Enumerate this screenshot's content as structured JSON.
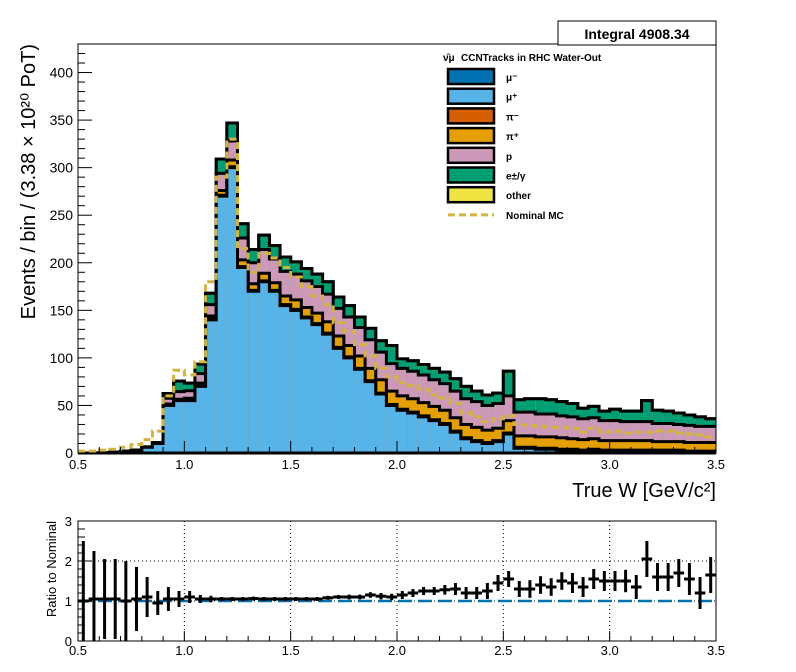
{
  "integral_box": {
    "label": "Integral 4908.34"
  },
  "chart_data": [
    {
      "type": "area",
      "title": "CCNTracks in RHC Water-Out",
      "title_prefix": "ν̄μ",
      "xlabel": "True W [GeV/c²]",
      "ylabel": "Events / bin / (3.38 × 10²⁰ PoT)",
      "xlim": [
        0.5,
        3.5
      ],
      "ylim": [
        0,
        430
      ],
      "x_ticks": [
        0.5,
        1.0,
        1.5,
        2.0,
        2.5,
        3.0,
        3.5
      ],
      "x_tick_labels": [
        "0.5",
        "1.0",
        "1.5",
        "2.0",
        "2.5",
        "3.0",
        "3.5"
      ],
      "y_ticks": [
        0,
        50,
        100,
        150,
        200,
        250,
        300,
        350,
        400
      ],
      "y_tick_labels": [
        "0",
        "50",
        "100",
        "150",
        "200",
        "250",
        "300",
        "350",
        "400"
      ],
      "grid": false,
      "legend_position": "top-right",
      "bin_edges": [
        0.5,
        0.55,
        0.6,
        0.65,
        0.7,
        0.75,
        0.8,
        0.85,
        0.9,
        0.95,
        1.0,
        1.05,
        1.1,
        1.15,
        1.2,
        1.25,
        1.3,
        1.35,
        1.4,
        1.45,
        1.5,
        1.55,
        1.6,
        1.65,
        1.7,
        1.75,
        1.8,
        1.85,
        1.9,
        1.95,
        2.0,
        2.05,
        2.1,
        2.15,
        2.2,
        2.25,
        2.3,
        2.35,
        2.4,
        2.45,
        2.5,
        2.55,
        2.6,
        2.65,
        2.7,
        2.75,
        2.8,
        2.85,
        2.9,
        2.95,
        3.0,
        3.05,
        3.1,
        3.15,
        3.2,
        3.25,
        3.3,
        3.35,
        3.4,
        3.45,
        3.5
      ],
      "series": [
        {
          "name": "μ⁻",
          "color": "#0072b2",
          "values": [
            0,
            0,
            0,
            0,
            0,
            0,
            0,
            0,
            0,
            0,
            0,
            0,
            0,
            0,
            0,
            0,
            0,
            0,
            0,
            0,
            0,
            0,
            0,
            0,
            0,
            0,
            0,
            0,
            0,
            0,
            0,
            0,
            0,
            0,
            0,
            0,
            0,
            0,
            0,
            0,
            0,
            0,
            0,
            0,
            0,
            0,
            0,
            0,
            0,
            0,
            0,
            0,
            0,
            0,
            0,
            0,
            0,
            0,
            0,
            0
          ]
        },
        {
          "name": "μ⁺",
          "color": "#56b4e9",
          "values": [
            0,
            0,
            0.5,
            1,
            2,
            3,
            6,
            10,
            50,
            55,
            55,
            70,
            140,
            270,
            300,
            195,
            170,
            180,
            170,
            155,
            150,
            142,
            135,
            125,
            110,
            100,
            88,
            75,
            62,
            50,
            45,
            42,
            38,
            34,
            30,
            22,
            15,
            12,
            10,
            12,
            20,
            5,
            5,
            4,
            4,
            3,
            3,
            2,
            3,
            2,
            2,
            2,
            2,
            2,
            2,
            2,
            2,
            1,
            1,
            1
          ]
        },
        {
          "name": "π⁻",
          "color": "#d55e00",
          "values": [
            0,
            0,
            0,
            0,
            0,
            0,
            0,
            0,
            0.5,
            0.5,
            0.5,
            0.5,
            1,
            1,
            1,
            1,
            1,
            1,
            1,
            1,
            1,
            1,
            1,
            1,
            1,
            1,
            1,
            1,
            1,
            1,
            1,
            1,
            1,
            1,
            1,
            1,
            1,
            1,
            1,
            1,
            1,
            1,
            1,
            1,
            1,
            1,
            1,
            1,
            1,
            1,
            1,
            1,
            1,
            1,
            1,
            1,
            1,
            1,
            1,
            1
          ]
        },
        {
          "name": "π⁺",
          "color": "#e69f00",
          "values": [
            0,
            0,
            0,
            0,
            0,
            0,
            0,
            0,
            1,
            1,
            2,
            3,
            3,
            5,
            7,
            7,
            7,
            8,
            8,
            9,
            10,
            10,
            11,
            12,
            12,
            12,
            13,
            13,
            14,
            14,
            14,
            14,
            14,
            14,
            14,
            14,
            14,
            14,
            13,
            13,
            13,
            12,
            12,
            12,
            12,
            12,
            11,
            11,
            11,
            10,
            10,
            10,
            10,
            10,
            9,
            9,
            9,
            9,
            9,
            9
          ]
        },
        {
          "name": "p",
          "color": "#cc99b8",
          "values": [
            0,
            0,
            0,
            0,
            0,
            0,
            0,
            0,
            6,
            8,
            8,
            10,
            12,
            18,
            20,
            23,
            22,
            25,
            25,
            26,
            27,
            28,
            28,
            29,
            29,
            30,
            30,
            30,
            29,
            29,
            29,
            29,
            29,
            28,
            28,
            28,
            27,
            27,
            26,
            26,
            26,
            25,
            25,
            24,
            24,
            23,
            23,
            22,
            22,
            21,
            21,
            20,
            20,
            20,
            19,
            19,
            18,
            18,
            17,
            17
          ]
        },
        {
          "name": "e±/γ",
          "color": "#009e73",
          "values": [
            0,
            0,
            0,
            0,
            0,
            0,
            0.5,
            1,
            5,
            11,
            8,
            10,
            12,
            15,
            19,
            15,
            14,
            15,
            14,
            15,
            13,
            13,
            13,
            13,
            12,
            12,
            11,
            12,
            12,
            19,
            10,
            11,
            11,
            12,
            12,
            13,
            13,
            11,
            11,
            11,
            26,
            13,
            14,
            16,
            15,
            15,
            14,
            11,
            12,
            10,
            12,
            11,
            11,
            22,
            14,
            13,
            12,
            11,
            10,
            8
          ]
        },
        {
          "name": "other",
          "color": "#f0e442",
          "values": [
            0,
            0,
            0,
            0,
            0,
            0,
            0,
            0,
            0,
            0,
            0,
            0,
            0,
            0,
            0,
            0,
            0,
            0,
            0,
            0,
            0,
            0,
            0,
            0,
            0,
            0,
            0,
            0,
            0,
            0,
            0,
            0,
            0,
            0,
            0,
            0,
            0,
            0,
            0,
            0,
            0,
            0,
            0,
            0,
            0,
            0,
            0,
            0,
            0,
            0,
            0,
            0,
            0,
            0,
            0,
            0,
            0,
            0,
            0,
            0
          ]
        },
        {
          "name": "Nominal MC",
          "color": "#d4b43c",
          "style": "dashed",
          "values": [
            2,
            2,
            3,
            4,
            6,
            9,
            14,
            23,
            60,
            87,
            82,
            96,
            180,
            290,
            330,
            215,
            190,
            210,
            205,
            195,
            185,
            175,
            165,
            156,
            137,
            128,
            114,
            102,
            89,
            80,
            74,
            71,
            67,
            61,
            58,
            52,
            42,
            38,
            33,
            36,
            39,
            30,
            29,
            28,
            27,
            27,
            26,
            22,
            26,
            22,
            23,
            21,
            22,
            22,
            23,
            23,
            21,
            20,
            19,
            17
          ]
        }
      ]
    },
    {
      "type": "scatter",
      "title": "",
      "xlabel": "",
      "ylabel": "Ratio to Nominal",
      "xlim": [
        0.5,
        3.5
      ],
      "ylim": [
        0,
        3
      ],
      "x_ticks": [
        0.5,
        1.0,
        1.5,
        2.0,
        2.5,
        3.0,
        3.5
      ],
      "x_tick_labels": [
        "0.5",
        "1.0",
        "1.5",
        "2.0",
        "2.5",
        "3.0",
        "3.5"
      ],
      "y_ticks": [
        0,
        1,
        2,
        3
      ],
      "y_tick_labels": [
        "0",
        "1",
        "2",
        "3"
      ],
      "grid": true,
      "reference_line": 1.0,
      "reference_color": "#0072b2",
      "x": [
        0.525,
        0.575,
        0.625,
        0.675,
        0.725,
        0.775,
        0.825,
        0.875,
        0.925,
        0.975,
        1.025,
        1.075,
        1.125,
        1.175,
        1.225,
        1.275,
        1.325,
        1.375,
        1.425,
        1.475,
        1.525,
        1.575,
        1.625,
        1.675,
        1.725,
        1.775,
        1.825,
        1.875,
        1.925,
        1.975,
        2.025,
        2.075,
        2.125,
        2.175,
        2.225,
        2.275,
        2.325,
        2.375,
        2.425,
        2.475,
        2.525,
        2.575,
        2.625,
        2.675,
        2.725,
        2.775,
        2.825,
        2.875,
        2.925,
        2.975,
        3.025,
        3.075,
        3.125,
        3.175,
        3.225,
        3.275,
        3.325,
        3.375,
        3.425,
        3.475
      ],
      "y": [
        1.0,
        1.05,
        1.05,
        1.05,
        1.0,
        1.05,
        1.1,
        0.95,
        1.05,
        1.05,
        1.1,
        1.05,
        1.05,
        1.05,
        1.05,
        1.05,
        1.06,
        1.05,
        1.05,
        1.05,
        1.05,
        1.05,
        1.05,
        1.08,
        1.1,
        1.1,
        1.1,
        1.15,
        1.12,
        1.1,
        1.15,
        1.2,
        1.25,
        1.25,
        1.28,
        1.3,
        1.2,
        1.2,
        1.25,
        1.45,
        1.55,
        1.3,
        1.3,
        1.4,
        1.35,
        1.5,
        1.45,
        1.35,
        1.55,
        1.5,
        1.5,
        1.5,
        1.35,
        2.05,
        1.6,
        1.6,
        1.7,
        1.55,
        1.2,
        1.65
      ],
      "y_err": [
        1.5,
        1.2,
        1.0,
        1.0,
        1.0,
        0.8,
        0.5,
        0.3,
        0.3,
        0.2,
        0.15,
        0.1,
        0.08,
        0.05,
        0.05,
        0.05,
        0.05,
        0.05,
        0.05,
        0.05,
        0.05,
        0.05,
        0.05,
        0.05,
        0.05,
        0.06,
        0.06,
        0.07,
        0.08,
        0.08,
        0.1,
        0.1,
        0.1,
        0.1,
        0.12,
        0.15,
        0.15,
        0.15,
        0.2,
        0.2,
        0.2,
        0.2,
        0.22,
        0.22,
        0.22,
        0.22,
        0.25,
        0.25,
        0.25,
        0.25,
        0.25,
        0.28,
        0.3,
        0.45,
        0.35,
        0.35,
        0.35,
        0.4,
        0.4,
        0.45
      ]
    }
  ]
}
